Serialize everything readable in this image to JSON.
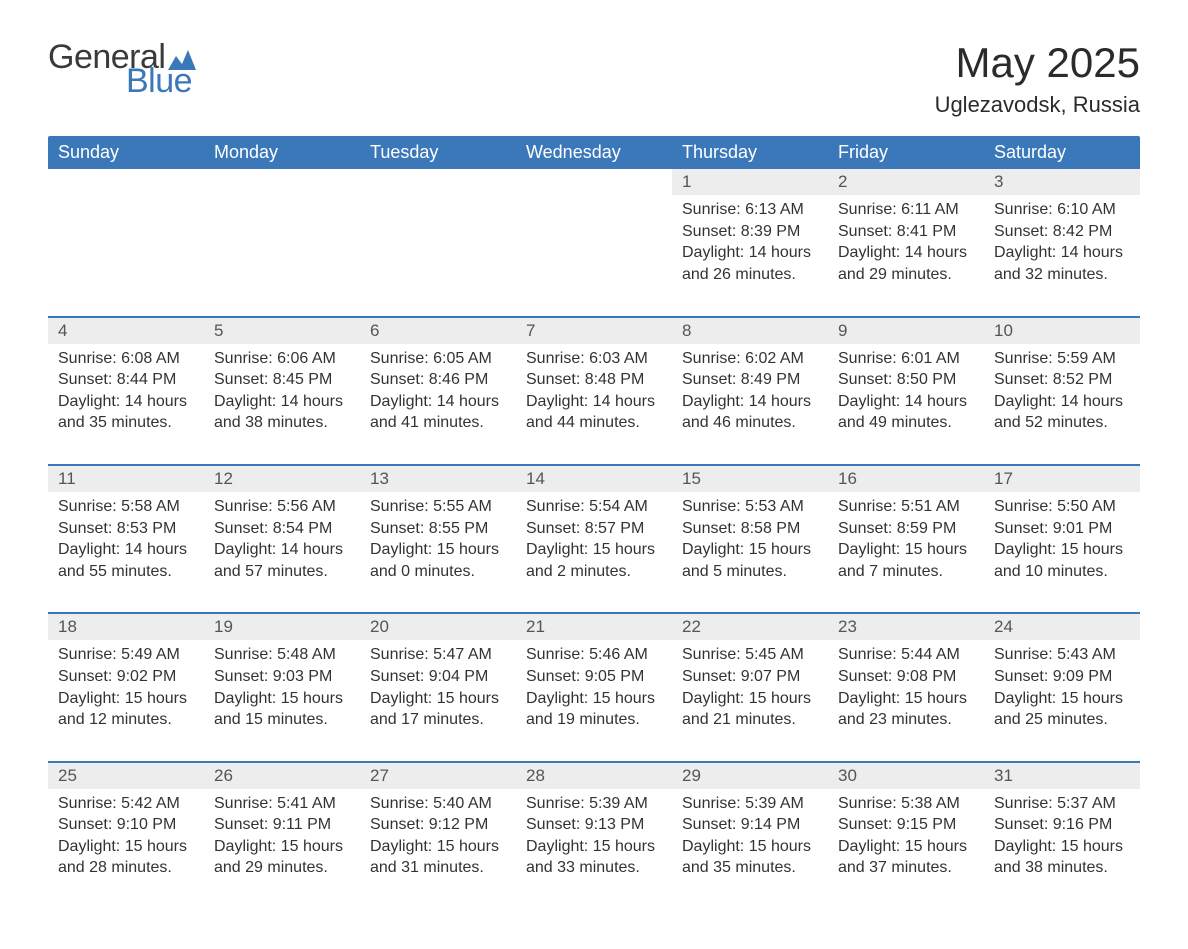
{
  "logo": {
    "word1": "General",
    "word2": "Blue",
    "icon_color": "#3b78b9"
  },
  "title": "May 2025",
  "location": "Uglezavodsk, Russia",
  "colors": {
    "header_bg": "#3b78b9",
    "header_text": "#ffffff",
    "daynum_bg": "#ededed",
    "daynum_border": "#3b78b9",
    "body_text": "#333333"
  },
  "day_headers": [
    "Sunday",
    "Monday",
    "Tuesday",
    "Wednesday",
    "Thursday",
    "Friday",
    "Saturday"
  ],
  "weeks": [
    [
      null,
      null,
      null,
      null,
      {
        "n": "1",
        "sunrise": "6:13 AM",
        "sunset": "8:39 PM",
        "dl_h": "14",
        "dl_m": "26"
      },
      {
        "n": "2",
        "sunrise": "6:11 AM",
        "sunset": "8:41 PM",
        "dl_h": "14",
        "dl_m": "29"
      },
      {
        "n": "3",
        "sunrise": "6:10 AM",
        "sunset": "8:42 PM",
        "dl_h": "14",
        "dl_m": "32"
      }
    ],
    [
      {
        "n": "4",
        "sunrise": "6:08 AM",
        "sunset": "8:44 PM",
        "dl_h": "14",
        "dl_m": "35"
      },
      {
        "n": "5",
        "sunrise": "6:06 AM",
        "sunset": "8:45 PM",
        "dl_h": "14",
        "dl_m": "38"
      },
      {
        "n": "6",
        "sunrise": "6:05 AM",
        "sunset": "8:46 PM",
        "dl_h": "14",
        "dl_m": "41"
      },
      {
        "n": "7",
        "sunrise": "6:03 AM",
        "sunset": "8:48 PM",
        "dl_h": "14",
        "dl_m": "44"
      },
      {
        "n": "8",
        "sunrise": "6:02 AM",
        "sunset": "8:49 PM",
        "dl_h": "14",
        "dl_m": "46"
      },
      {
        "n": "9",
        "sunrise": "6:01 AM",
        "sunset": "8:50 PM",
        "dl_h": "14",
        "dl_m": "49"
      },
      {
        "n": "10",
        "sunrise": "5:59 AM",
        "sunset": "8:52 PM",
        "dl_h": "14",
        "dl_m": "52"
      }
    ],
    [
      {
        "n": "11",
        "sunrise": "5:58 AM",
        "sunset": "8:53 PM",
        "dl_h": "14",
        "dl_m": "55"
      },
      {
        "n": "12",
        "sunrise": "5:56 AM",
        "sunset": "8:54 PM",
        "dl_h": "14",
        "dl_m": "57"
      },
      {
        "n": "13",
        "sunrise": "5:55 AM",
        "sunset": "8:55 PM",
        "dl_h": "15",
        "dl_m": "0"
      },
      {
        "n": "14",
        "sunrise": "5:54 AM",
        "sunset": "8:57 PM",
        "dl_h": "15",
        "dl_m": "2"
      },
      {
        "n": "15",
        "sunrise": "5:53 AM",
        "sunset": "8:58 PM",
        "dl_h": "15",
        "dl_m": "5"
      },
      {
        "n": "16",
        "sunrise": "5:51 AM",
        "sunset": "8:59 PM",
        "dl_h": "15",
        "dl_m": "7"
      },
      {
        "n": "17",
        "sunrise": "5:50 AM",
        "sunset": "9:01 PM",
        "dl_h": "15",
        "dl_m": "10"
      }
    ],
    [
      {
        "n": "18",
        "sunrise": "5:49 AM",
        "sunset": "9:02 PM",
        "dl_h": "15",
        "dl_m": "12"
      },
      {
        "n": "19",
        "sunrise": "5:48 AM",
        "sunset": "9:03 PM",
        "dl_h": "15",
        "dl_m": "15"
      },
      {
        "n": "20",
        "sunrise": "5:47 AM",
        "sunset": "9:04 PM",
        "dl_h": "15",
        "dl_m": "17"
      },
      {
        "n": "21",
        "sunrise": "5:46 AM",
        "sunset": "9:05 PM",
        "dl_h": "15",
        "dl_m": "19"
      },
      {
        "n": "22",
        "sunrise": "5:45 AM",
        "sunset": "9:07 PM",
        "dl_h": "15",
        "dl_m": "21"
      },
      {
        "n": "23",
        "sunrise": "5:44 AM",
        "sunset": "9:08 PM",
        "dl_h": "15",
        "dl_m": "23"
      },
      {
        "n": "24",
        "sunrise": "5:43 AM",
        "sunset": "9:09 PM",
        "dl_h": "15",
        "dl_m": "25"
      }
    ],
    [
      {
        "n": "25",
        "sunrise": "5:42 AM",
        "sunset": "9:10 PM",
        "dl_h": "15",
        "dl_m": "28"
      },
      {
        "n": "26",
        "sunrise": "5:41 AM",
        "sunset": "9:11 PM",
        "dl_h": "15",
        "dl_m": "29"
      },
      {
        "n": "27",
        "sunrise": "5:40 AM",
        "sunset": "9:12 PM",
        "dl_h": "15",
        "dl_m": "31"
      },
      {
        "n": "28",
        "sunrise": "5:39 AM",
        "sunset": "9:13 PM",
        "dl_h": "15",
        "dl_m": "33"
      },
      {
        "n": "29",
        "sunrise": "5:39 AM",
        "sunset": "9:14 PM",
        "dl_h": "15",
        "dl_m": "35"
      },
      {
        "n": "30",
        "sunrise": "5:38 AM",
        "sunset": "9:15 PM",
        "dl_h": "15",
        "dl_m": "37"
      },
      {
        "n": "31",
        "sunrise": "5:37 AM",
        "sunset": "9:16 PM",
        "dl_h": "15",
        "dl_m": "38"
      }
    ]
  ],
  "labels": {
    "sunrise_prefix": "Sunrise: ",
    "sunset_prefix": "Sunset: ",
    "daylight_prefix": "Daylight: ",
    "hours_word": " hours",
    "and_word": "and ",
    "minutes_word": " minutes."
  }
}
